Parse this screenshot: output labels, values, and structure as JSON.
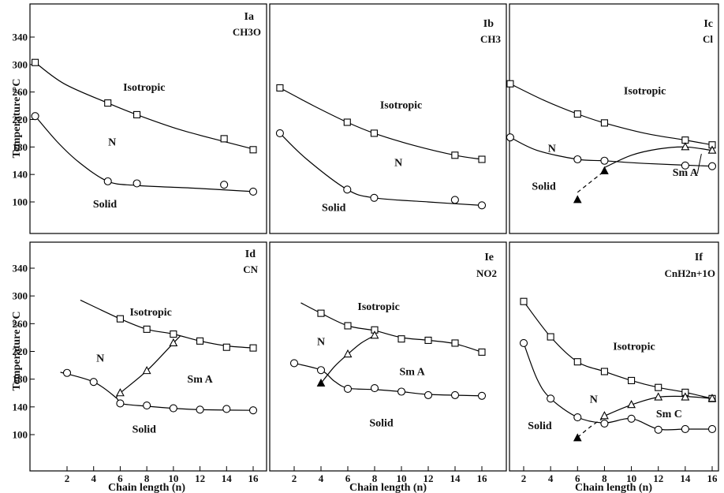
{
  "chart_data": [
    {
      "type": "scatter",
      "panel": {
        "id": "Ia",
        "substituent": "CH3O"
      },
      "ylim": [
        60,
        370
      ],
      "xlim": [
        1,
        16.5
      ],
      "yticks": [
        100,
        140,
        180,
        220,
        260,
        300,
        340
      ],
      "xticks": [],
      "ylabel": "Temperature /°C",
      "xlabel": "",
      "series": [
        {
          "marker": "square",
          "line": "solid",
          "x": [
            1,
            6,
            8,
            14,
            16
          ],
          "y": [
            303,
            244,
            227,
            192,
            176
          ],
          "curve": [
            [
              1,
              303
            ],
            [
              3,
              272
            ],
            [
              6,
              244
            ],
            [
              8,
              227
            ],
            [
              11,
              205
            ],
            [
              14,
              188
            ],
            [
              16,
              177
            ]
          ]
        },
        {
          "marker": "circle",
          "line": "solid",
          "x": [
            1,
            6,
            8,
            14,
            16
          ],
          "y": [
            225,
            130,
            127,
            125,
            115
          ],
          "curve": [
            [
              1,
              225
            ],
            [
              2.5,
              188
            ],
            [
              4,
              158
            ],
            [
              6,
              130
            ],
            [
              8,
              124
            ],
            [
              12,
              120
            ],
            [
              16,
              115
            ]
          ]
        }
      ],
      "regions": [
        {
          "text": "Isotropic",
          "x": 8.5,
          "y": 262
        },
        {
          "text": "N",
          "x": 6.3,
          "y": 182
        },
        {
          "text": "Solid",
          "x": 5.8,
          "y": 92
        }
      ]
    },
    {
      "type": "scatter",
      "panel": {
        "id": "Ib",
        "substituent": "CH3"
      },
      "ylim": [
        60,
        370
      ],
      "xlim": [
        1,
        16.5
      ],
      "yticks": [],
      "xticks": [],
      "series": [
        {
          "marker": "square",
          "line": "solid",
          "x": [
            1,
            6,
            8,
            14,
            16
          ],
          "y": [
            266,
            216,
            200,
            168,
            162
          ],
          "curve": [
            [
              1,
              266
            ],
            [
              3.5,
              240
            ],
            [
              6,
              216
            ],
            [
              8,
              200
            ],
            [
              11,
              182
            ],
            [
              14,
              168
            ],
            [
              16,
              162
            ]
          ]
        },
        {
          "marker": "circle",
          "line": "solid",
          "x": [
            1,
            6,
            8,
            14,
            16
          ],
          "y": [
            200,
            118,
            106,
            103,
            95
          ],
          "curve": [
            [
              1,
              200
            ],
            [
              3,
              162
            ],
            [
              6,
              118
            ],
            [
              8,
              106
            ],
            [
              12,
              100
            ],
            [
              16,
              95
            ]
          ]
        }
      ],
      "regions": [
        {
          "text": "Isotropic",
          "x": 10,
          "y": 236
        },
        {
          "text": "N",
          "x": 9.8,
          "y": 152
        },
        {
          "text": "Solid",
          "x": 5,
          "y": 87
        }
      ]
    },
    {
      "type": "scatter",
      "panel": {
        "id": "Ic",
        "substituent": "Cl"
      },
      "ylim": [
        60,
        370
      ],
      "xlim": [
        1,
        16.5
      ],
      "yticks": [],
      "xticks": [],
      "series": [
        {
          "marker": "square",
          "line": "solid",
          "x": [
            1,
            6,
            8,
            14,
            16
          ],
          "y": [
            272,
            228,
            215,
            190,
            183
          ],
          "curve": [
            [
              1,
              272
            ],
            [
              3.5,
              248
            ],
            [
              6,
              228
            ],
            [
              8,
              215
            ],
            [
              11,
              200
            ],
            [
              14,
              190
            ],
            [
              16,
              183
            ]
          ]
        },
        {
          "marker": "circle",
          "line": "solid",
          "x": [
            1,
            6,
            8,
            14,
            16
          ],
          "y": [
            194,
            162,
            160,
            153,
            152
          ],
          "curve": [
            [
              1,
              194
            ],
            [
              3,
              175
            ],
            [
              6,
              162
            ],
            [
              8,
              160
            ],
            [
              11,
              156
            ],
            [
              16,
              152
            ]
          ]
        },
        {
          "marker": "triangle",
          "line": "solid",
          "x": [
            14,
            16
          ],
          "y": [
            180,
            175
          ],
          "curve": [
            [
              8,
              150
            ],
            [
              10,
              168
            ],
            [
              12,
              177
            ],
            [
              14,
              180
            ],
            [
              16,
              175
            ]
          ]
        },
        {
          "marker": "triangle-filled",
          "line": "dashed",
          "x": [
            6,
            8
          ],
          "y": [
            103,
            145
          ],
          "curve": [
            [
              6,
              114
            ],
            [
              8,
              145
            ]
          ]
        }
      ],
      "regions": [
        {
          "text": "Isotropic",
          "x": 11,
          "y": 257
        },
        {
          "text": "N",
          "x": 4.1,
          "y": 173
        },
        {
          "text": "Solid",
          "x": 3.5,
          "y": 118
        },
        {
          "text": "Sm A",
          "x": 14,
          "y": 138
        }
      ],
      "callout": {
        "x1": 15.2,
        "y1": 170,
        "x2": 14.9,
        "y2": 141
      }
    },
    {
      "type": "scatter",
      "panel": {
        "id": "Id",
        "substituent": "CN"
      },
      "ylim": [
        60,
        370
      ],
      "xlim": [
        1,
        16.5
      ],
      "yticks": [
        100,
        140,
        180,
        220,
        260,
        300,
        340
      ],
      "xticks": [
        2,
        4,
        6,
        8,
        10,
        12,
        14,
        16
      ],
      "ylabel": "Temperature /°C",
      "xlabel": "Chain length (n)",
      "series": [
        {
          "marker": "square",
          "line": "solid",
          "x": [
            6,
            8,
            10,
            12,
            14,
            16
          ],
          "y": [
            267,
            252,
            245,
            235,
            226,
            225
          ],
          "curve": [
            [
              3,
              294
            ],
            [
              6,
              267
            ],
            [
              8,
              252
            ],
            [
              10,
              245
            ],
            [
              12,
              235
            ],
            [
              14,
              228
            ],
            [
              16,
              225
            ]
          ]
        },
        {
          "marker": "circle",
          "line": "solid",
          "x": [
            2,
            4,
            6,
            8,
            10,
            12,
            14,
            16
          ],
          "y": [
            189,
            176,
            145,
            142,
            138,
            136,
            137,
            135
          ],
          "curve": [
            [
              1.5,
              190
            ],
            [
              4,
              176
            ],
            [
              5.7,
              153
            ],
            [
              6,
              145
            ],
            [
              8,
              141
            ],
            [
              10,
              138
            ],
            [
              12,
              136
            ],
            [
              16,
              135
            ]
          ]
        },
        {
          "marker": "triangle",
          "line": "solid",
          "x": [
            6,
            8,
            10
          ],
          "y": [
            160,
            192,
            232
          ],
          "curve": [
            [
              5.7,
              153
            ],
            [
              6,
              160
            ],
            [
              8,
              192
            ],
            [
              10,
              232
            ],
            [
              10.5,
              242
            ]
          ]
        }
      ],
      "regions": [
        {
          "text": "Isotropic",
          "x": 8.3,
          "y": 272
        },
        {
          "text": "N",
          "x": 4.5,
          "y": 205
        },
        {
          "text": "Sm A",
          "x": 12,
          "y": 175
        },
        {
          "text": "Solid",
          "x": 7.8,
          "y": 103
        }
      ]
    },
    {
      "type": "scatter",
      "panel": {
        "id": "Ie",
        "substituent": "NO2"
      },
      "ylim": [
        60,
        370
      ],
      "xlim": [
        1,
        16.5
      ],
      "yticks": [],
      "xticks": [
        2,
        4,
        6,
        8,
        10,
        12,
        14,
        16
      ],
      "xlabel": "Chain length (n)",
      "series": [
        {
          "marker": "square",
          "line": "solid",
          "x": [
            4,
            6,
            8,
            10,
            12,
            14,
            16
          ],
          "y": [
            275,
            257,
            251,
            238,
            236,
            232,
            219
          ],
          "curve": [
            [
              2.5,
              290
            ],
            [
              4,
              275
            ],
            [
              6,
              257
            ],
            [
              8,
              250
            ],
            [
              10,
              240
            ],
            [
              12,
              236
            ],
            [
              14,
              231
            ],
            [
              16,
              219
            ]
          ]
        },
        {
          "marker": "circle",
          "line": "solid",
          "x": [
            2,
            4,
            6,
            8,
            10,
            12,
            14,
            16
          ],
          "y": [
            203,
            193,
            166,
            167,
            162,
            157,
            157,
            156
          ],
          "curve": [
            [
              2,
              203
            ],
            [
              4,
              193
            ],
            [
              5,
              177
            ],
            [
              6,
              167
            ],
            [
              8,
              165
            ],
            [
              10,
              162
            ],
            [
              12,
              158
            ],
            [
              16,
              156
            ]
          ]
        },
        {
          "marker": "triangle",
          "line": "solid",
          "x": [
            6,
            8
          ],
          "y": [
            216,
            243
          ],
          "curve": [
            [
              4,
              174
            ],
            [
              5,
              198
            ],
            [
              6,
              216
            ],
            [
              7,
              232
            ],
            [
              8,
              243
            ]
          ]
        },
        {
          "marker": "triangle-filled",
          "line": "none",
          "x": [
            4
          ],
          "y": [
            174
          ]
        }
      ],
      "regions": [
        {
          "text": "Isotropic",
          "x": 8.3,
          "y": 280
        },
        {
          "text": "N",
          "x": 4,
          "y": 229
        },
        {
          "text": "Sm A",
          "x": 10.8,
          "y": 186
        },
        {
          "text": "Solid",
          "x": 8.5,
          "y": 112
        }
      ]
    },
    {
      "type": "scatter",
      "panel": {
        "id": "If",
        "substituent": "CnH2n+1O"
      },
      "ylim": [
        60,
        370
      ],
      "xlim": [
        1,
        16.5
      ],
      "yticks": [],
      "xticks": [
        2,
        4,
        6,
        8,
        10,
        12,
        14,
        16
      ],
      "xlabel": "Chain length (n)",
      "series": [
        {
          "marker": "square",
          "line": "solid",
          "x": [
            2,
            4,
            6,
            8,
            10,
            12,
            14,
            16
          ],
          "y": [
            292,
            241,
            205,
            191,
            178,
            168,
            161,
            152
          ],
          "curve": [
            [
              2,
              292
            ],
            [
              4,
              241
            ],
            [
              6,
              205
            ],
            [
              8,
              191
            ],
            [
              10,
              178
            ],
            [
              12,
              168
            ],
            [
              14,
              161
            ],
            [
              16,
              152
            ]
          ]
        },
        {
          "marker": "circle",
          "line": "solid",
          "x": [
            2,
            4,
            6,
            8,
            10,
            12,
            14,
            16
          ],
          "y": [
            232,
            152,
            125,
            116,
            123,
            107,
            108,
            108
          ],
          "curve": [
            [
              2,
              232
            ],
            [
              3,
              180
            ],
            [
              4,
              152
            ],
            [
              6,
              125
            ],
            [
              8,
              117
            ],
            [
              10,
              123
            ],
            [
              12,
              108
            ],
            [
              14,
              108
            ],
            [
              16,
              108
            ]
          ]
        },
        {
          "marker": "triangle",
          "line": "solid",
          "x": [
            8,
            10,
            12,
            14,
            16
          ],
          "y": [
            127,
            143,
            154,
            154,
            152
          ],
          "curve": [
            [
              8,
              127
            ],
            [
              10,
              143
            ],
            [
              12,
              154
            ],
            [
              14,
              155
            ],
            [
              16,
              152
            ]
          ]
        },
        {
          "marker": "triangle-filled",
          "line": "dashed",
          "x": [
            6
          ],
          "y": [
            95
          ],
          "curve": [
            [
              6,
              96
            ],
            [
              7,
              112
            ],
            [
              8,
              125
            ]
          ]
        }
      ],
      "regions": [
        {
          "text": "Isotropic",
          "x": 10.2,
          "y": 222
        },
        {
          "text": "N",
          "x": 7.2,
          "y": 146
        },
        {
          "text": "Sm C",
          "x": 12.8,
          "y": 125
        },
        {
          "text": "Solid",
          "x": 3.2,
          "y": 108
        }
      ]
    }
  ]
}
